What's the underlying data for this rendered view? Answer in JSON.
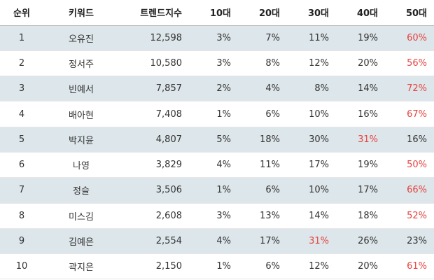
{
  "headers": [
    "순위",
    "키워드",
    "트렌드지수",
    "10대",
    "20대",
    "30대",
    "40대",
    "50대"
  ],
  "highlight_color": "#e5433f",
  "row_shade_color": "#dde6ea",
  "rows": [
    {
      "rank": "1",
      "keyword": "오유진",
      "trend": "12,598",
      "a10": "3%",
      "a20": "7%",
      "a30": "11%",
      "a40": "19%",
      "a50": "60%",
      "hl": "a50"
    },
    {
      "rank": "2",
      "keyword": "정서주",
      "trend": "10,580",
      "a10": "3%",
      "a20": "8%",
      "a30": "12%",
      "a40": "20%",
      "a50": "56%",
      "hl": "a50"
    },
    {
      "rank": "3",
      "keyword": "빈예서",
      "trend": "7,857",
      "a10": "2%",
      "a20": "4%",
      "a30": "8%",
      "a40": "14%",
      "a50": "72%",
      "hl": "a50"
    },
    {
      "rank": "4",
      "keyword": "배아현",
      "trend": "7,408",
      "a10": "1%",
      "a20": "6%",
      "a30": "10%",
      "a40": "16%",
      "a50": "67%",
      "hl": "a50"
    },
    {
      "rank": "5",
      "keyword": "박지윤",
      "trend": "4,807",
      "a10": "5%",
      "a20": "18%",
      "a30": "30%",
      "a40": "31%",
      "a50": "16%",
      "hl": "a40"
    },
    {
      "rank": "6",
      "keyword": "나영",
      "trend": "3,829",
      "a10": "4%",
      "a20": "11%",
      "a30": "17%",
      "a40": "19%",
      "a50": "50%",
      "hl": "a50"
    },
    {
      "rank": "7",
      "keyword": "정슬",
      "trend": "3,506",
      "a10": "1%",
      "a20": "6%",
      "a30": "10%",
      "a40": "17%",
      "a50": "66%",
      "hl": "a50"
    },
    {
      "rank": "8",
      "keyword": "미스김",
      "trend": "2,608",
      "a10": "3%",
      "a20": "13%",
      "a30": "14%",
      "a40": "18%",
      "a50": "52%",
      "hl": "a50"
    },
    {
      "rank": "9",
      "keyword": "김예은",
      "trend": "2,554",
      "a10": "4%",
      "a20": "17%",
      "a30": "31%",
      "a40": "26%",
      "a50": "23%",
      "hl": "a30"
    },
    {
      "rank": "10",
      "keyword": "곽지은",
      "trend": "2,150",
      "a10": "1%",
      "a20": "6%",
      "a30": "12%",
      "a40": "20%",
      "a50": "61%",
      "hl": "a50"
    }
  ]
}
